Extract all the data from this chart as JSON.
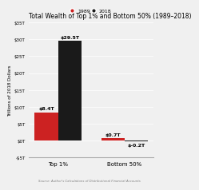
{
  "title": "Total Wealth of Top 1% and Bottom 50% (1989–2018)",
  "legend_labels": [
    "1989",
    "2018"
  ],
  "legend_colors": [
    "#cc2222",
    "#1a1a1a"
  ],
  "categories": [
    "Top 1%",
    "Bottom 50%"
  ],
  "values_1989": [
    8.4,
    0.7
  ],
  "values_2018": [
    29.5,
    -0.2
  ],
  "bar_labels_1989": [
    "$8.4T",
    "$0.7T"
  ],
  "bar_labels_2018": [
    "$29.5T",
    "$-0.2T"
  ],
  "bar_color_1989": "#cc2222",
  "bar_color_2018": "#1a1a1a",
  "ylabel": "Trillions of 2018 Dollars",
  "ylim": [
    -5,
    35
  ],
  "yticks": [
    -5,
    0,
    5,
    10,
    15,
    20,
    25,
    30,
    35
  ],
  "ytick_labels": [
    "-$5T",
    "$0T",
    "$5T",
    "$10T",
    "$15T",
    "$20T",
    "$25T",
    "$30T",
    "$35T"
  ],
  "source": "Source: Author's Calculations of Distributional Financial Accounts",
  "background": "#f0f0f0",
  "bar_width": 0.35
}
